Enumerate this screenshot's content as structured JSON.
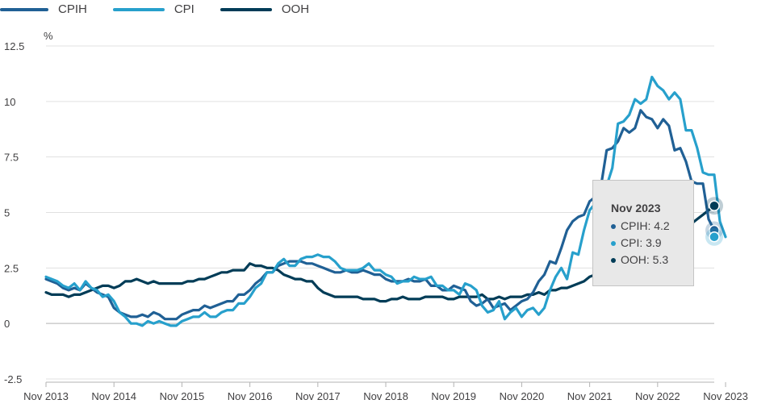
{
  "legend": [
    {
      "name": "CPIH",
      "color": "#206095"
    },
    {
      "name": "CPI",
      "color": "#27a0cc"
    },
    {
      "name": "OOH",
      "color": "#003c57"
    }
  ],
  "tooltip": {
    "title": "Nov 2023",
    "rows": [
      {
        "label": "CPIH: 4.2",
        "color": "#206095"
      },
      {
        "label": "CPI: 3.9",
        "color": "#27a0cc"
      },
      {
        "label": "OOH: 5.3",
        "color": "#003c57"
      }
    ]
  },
  "chart_data": {
    "type": "line",
    "ylabel": "%",
    "ylim": [
      -2.5,
      12.5
    ],
    "yticks": [
      -2.5,
      0,
      2.5,
      5,
      7.5,
      10,
      12.5
    ],
    "yticklabels": [
      "-2.5",
      "0",
      "2.5",
      "5",
      "7.5",
      "10",
      "12.5"
    ],
    "x_start": "Nov 2013",
    "x_end": "Nov 2023",
    "xticklabels": [
      "Nov 2013",
      "Nov 2014",
      "Nov 2015",
      "Nov 2016",
      "Nov 2017",
      "Nov 2018",
      "Nov 2019",
      "Nov 2020",
      "Nov 2021",
      "Nov 2022",
      "Nov 2023"
    ],
    "grid": true,
    "legend_position": "top-left",
    "series": [
      {
        "name": "CPIH",
        "color": "#206095",
        "values": [
          2.0,
          1.9,
          1.8,
          1.6,
          1.5,
          1.6,
          1.5,
          1.8,
          1.6,
          1.4,
          1.3,
          1.2,
          0.7,
          0.5,
          0.4,
          0.3,
          0.3,
          0.4,
          0.3,
          0.5,
          0.4,
          0.2,
          0.2,
          0.2,
          0.4,
          0.5,
          0.6,
          0.6,
          0.8,
          0.7,
          0.8,
          0.9,
          1.0,
          1.0,
          1.3,
          1.3,
          1.5,
          1.8,
          2.0,
          2.3,
          2.3,
          2.6,
          2.7,
          2.8,
          2.8,
          2.8,
          2.7,
          2.7,
          2.6,
          2.5,
          2.4,
          2.3,
          2.3,
          2.4,
          2.3,
          2.3,
          2.4,
          2.3,
          2.2,
          2.2,
          2.0,
          1.9,
          1.9,
          1.9,
          2.0,
          1.9,
          1.9,
          2.0,
          1.7,
          1.7,
          1.5,
          1.5,
          1.7,
          1.6,
          1.5,
          1.0,
          0.8,
          0.9,
          1.1,
          0.7,
          0.8,
          0.9,
          0.6,
          0.8,
          1.0,
          1.1,
          1.4,
          1.9,
          2.2,
          2.8,
          2.7,
          3.4,
          4.2,
          4.6,
          4.8,
          4.9,
          5.5,
          5.7,
          6.2,
          7.8,
          7.9,
          8.2,
          8.8,
          8.6,
          8.8,
          9.6,
          9.3,
          9.2,
          8.8,
          9.2,
          8.9,
          7.8,
          7.9,
          7.3,
          6.4,
          6.3,
          6.3,
          4.7,
          4.2
        ]
      },
      {
        "name": "CPI",
        "color": "#27a0cc",
        "values": [
          2.1,
          2.0,
          1.9,
          1.7,
          1.6,
          1.8,
          1.5,
          1.9,
          1.6,
          1.5,
          1.2,
          1.3,
          1.0,
          0.5,
          0.3,
          0.0,
          0.0,
          -0.1,
          0.1,
          0.0,
          0.1,
          0.0,
          -0.1,
          -0.1,
          0.1,
          0.2,
          0.3,
          0.3,
          0.5,
          0.3,
          0.3,
          0.5,
          0.6,
          0.6,
          0.9,
          0.9,
          1.2,
          1.6,
          1.8,
          2.3,
          2.3,
          2.7,
          2.9,
          2.6,
          2.6,
          2.9,
          3.0,
          3.0,
          3.1,
          3.0,
          3.0,
          2.8,
          2.5,
          2.4,
          2.4,
          2.4,
          2.5,
          2.7,
          2.4,
          2.4,
          2.2,
          2.1,
          1.8,
          1.9,
          1.9,
          2.1,
          2.0,
          2.0,
          2.1,
          1.7,
          1.7,
          1.5,
          1.5,
          1.3,
          1.8,
          1.7,
          1.5,
          0.8,
          0.5,
          0.6,
          1.0,
          0.2,
          0.5,
          0.7,
          0.3,
          0.6,
          0.7,
          0.4,
          0.7,
          1.5,
          2.1,
          2.5,
          2.0,
          3.2,
          3.1,
          4.2,
          5.1,
          5.4,
          5.5,
          6.2,
          7.0,
          9.0,
          9.1,
          9.4,
          10.1,
          9.9,
          10.1,
          11.1,
          10.7,
          10.5,
          10.1,
          10.4,
          10.1,
          8.7,
          8.7,
          7.9,
          6.8,
          6.7,
          6.7,
          4.6,
          3.9
        ]
      },
      {
        "name": "OOH",
        "color": "#003c57",
        "values": [
          1.4,
          1.3,
          1.3,
          1.3,
          1.2,
          1.3,
          1.3,
          1.4,
          1.5,
          1.6,
          1.7,
          1.7,
          1.6,
          1.7,
          1.9,
          1.9,
          2.0,
          1.9,
          1.8,
          1.9,
          1.8,
          1.8,
          1.8,
          1.8,
          1.8,
          1.9,
          1.9,
          2.0,
          2.0,
          2.1,
          2.2,
          2.3,
          2.3,
          2.4,
          2.4,
          2.4,
          2.7,
          2.6,
          2.6,
          2.5,
          2.5,
          2.4,
          2.2,
          2.1,
          2.0,
          2.0,
          1.9,
          1.9,
          1.6,
          1.4,
          1.3,
          1.2,
          1.2,
          1.2,
          1.2,
          1.2,
          1.1,
          1.1,
          1.1,
          1.0,
          1.0,
          1.1,
          1.1,
          1.2,
          1.1,
          1.1,
          1.1,
          1.2,
          1.2,
          1.2,
          1.2,
          1.1,
          1.1,
          1.2,
          1.2,
          1.2,
          1.2,
          1.3,
          1.1,
          1.1,
          1.2,
          1.1,
          1.2,
          1.2,
          1.2,
          1.3,
          1.3,
          1.4,
          1.3,
          1.5,
          1.5,
          1.6,
          1.6,
          1.7,
          1.8,
          1.9,
          2.1,
          2.2,
          2.4,
          2.6,
          2.6,
          2.7,
          2.8,
          2.9,
          3.0,
          3.1,
          3.3,
          3.4,
          3.6,
          3.8,
          3.9,
          4.0,
          4.1,
          4.3,
          4.5,
          4.7,
          4.9,
          5.1,
          5.3
        ]
      }
    ]
  }
}
